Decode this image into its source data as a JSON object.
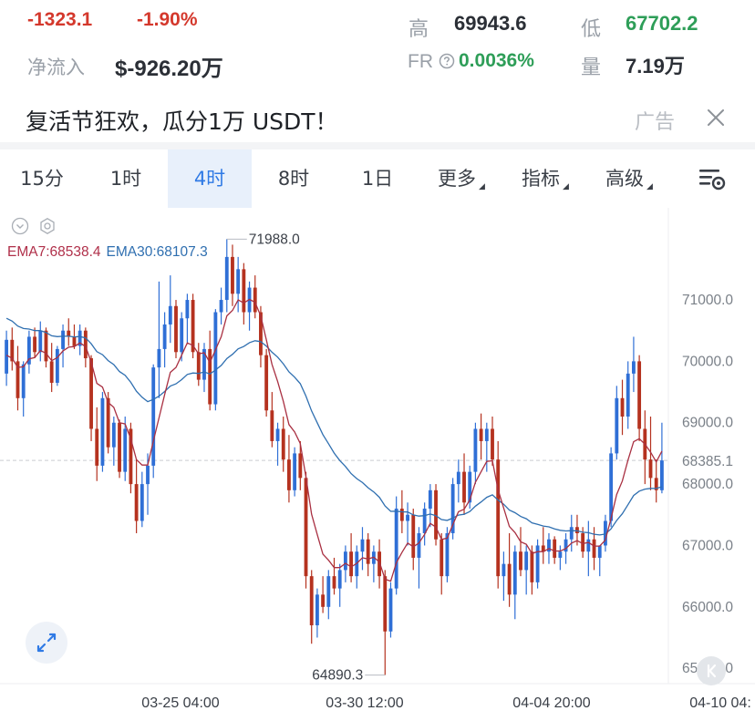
{
  "ticker": {
    "change": "-1323.1",
    "change_pct": "-1.90%",
    "netflow_label": "净流入",
    "netflow_value": "$-926.20万",
    "high_label": "高",
    "high_value": "69943.6",
    "low_label": "低",
    "low_value": "67702.2",
    "fr_label": "FR",
    "fr_value": "0.0036%",
    "vol_label": "量",
    "vol_value": "7.19万"
  },
  "ad": {
    "title": "复活节狂欢，瓜分1万 USDT！",
    "tag": "广告"
  },
  "tabs": {
    "t15m": "15分",
    "t1h": "1时",
    "t4h": "4时",
    "t8h": "8时",
    "t1d": "1日",
    "more": "更多",
    "indicators": "指标",
    "advanced": "高级"
  },
  "colors": {
    "up": "#2f6fd6",
    "down": "#b5321f",
    "ema7": "#a93042",
    "ema30": "#2f6fb0",
    "active_tab_bg": "#e8f0fb",
    "active_tab_text": "#2f7ae5"
  },
  "icons": {
    "close": "close-icon",
    "settings": "chart-settings-icon",
    "collapse": "chevron-down-icon",
    "gear": "gear-icon",
    "expand": "expand-icon",
    "back": "back-to-latest-icon"
  },
  "chart_data": {
    "type": "candlestick",
    "interval": "4时",
    "ema7_label": "EMA7:68538.4",
    "ema30_label": "EMA30:68107.3",
    "last_price": "68385.1",
    "max_label": "71988.0",
    "min_label": "64890.3",
    "y_ticks": [
      "71000.0",
      "70000.0",
      "69000.0",
      "68000.0",
      "67000.0",
      "66000.0",
      "65000.0"
    ],
    "x_ticks": [
      "03-25 04:00",
      "03-30 12:00",
      "04-04 20:00",
      "04-10 04:"
    ],
    "ylim": [
      64750,
      72500
    ],
    "candles": [
      [
        69800,
        70500,
        69600,
        70350
      ],
      [
        70350,
        70550,
        69850,
        70000
      ],
      [
        70000,
        70250,
        69200,
        69400
      ],
      [
        69400,
        70000,
        69100,
        69950
      ],
      [
        69950,
        70500,
        69800,
        70400
      ],
      [
        70400,
        70550,
        70050,
        70150
      ],
      [
        70150,
        70650,
        70000,
        70500
      ],
      [
        70500,
        70550,
        69900,
        70000
      ],
      [
        70000,
        70300,
        69500,
        69650
      ],
      [
        69650,
        70250,
        69600,
        70200
      ],
      [
        70200,
        70600,
        69900,
        70500
      ],
      [
        70500,
        70700,
        70250,
        70400
      ],
      [
        70400,
        70600,
        70200,
        70250
      ],
      [
        70250,
        70600,
        70100,
        70500
      ],
      [
        70500,
        70550,
        69900,
        70050
      ],
      [
        70050,
        70100,
        68700,
        68900
      ],
      [
        68900,
        69250,
        68050,
        68300
      ],
      [
        68300,
        69500,
        68200,
        69400
      ],
      [
        69400,
        69500,
        68500,
        68600
      ],
      [
        68600,
        69100,
        68300,
        69000
      ],
      [
        69000,
        69050,
        68100,
        68200
      ],
      [
        68200,
        69100,
        68050,
        68900
      ],
      [
        68900,
        69000,
        67850,
        68000
      ],
      [
        68000,
        68400,
        67200,
        67400
      ],
      [
        67400,
        68200,
        67300,
        68000
      ],
      [
        68000,
        68500,
        67500,
        68300
      ],
      [
        68300,
        69950,
        68100,
        69900
      ],
      [
        69900,
        71300,
        69400,
        70200
      ],
      [
        70200,
        70800,
        69900,
        70600
      ],
      [
        70600,
        71400,
        70300,
        70900
      ],
      [
        70900,
        71000,
        70050,
        70150
      ],
      [
        70150,
        70800,
        70000,
        70700
      ],
      [
        70700,
        71100,
        70300,
        71000
      ],
      [
        71000,
        71100,
        70050,
        70150
      ],
      [
        70150,
        70300,
        69600,
        69700
      ],
      [
        69700,
        70300,
        69500,
        70200
      ],
      [
        70200,
        70500,
        69200,
        69300
      ],
      [
        69300,
        70850,
        69200,
        70800
      ],
      [
        70800,
        71200,
        70600,
        71000
      ],
      [
        71000,
        71990,
        70800,
        71700
      ],
      [
        71700,
        71900,
        70900,
        71100
      ],
      [
        71100,
        71700,
        70800,
        71500
      ],
      [
        71500,
        71600,
        70600,
        70800
      ],
      [
        70800,
        71300,
        70500,
        71200
      ],
      [
        71200,
        71400,
        70700,
        70800
      ],
      [
        70800,
        70900,
        69900,
        70100
      ],
      [
        70100,
        70200,
        69100,
        69200
      ],
      [
        69200,
        69500,
        68600,
        68700
      ],
      [
        68700,
        69000,
        68300,
        68900
      ],
      [
        68900,
        69100,
        68200,
        68400
      ],
      [
        68400,
        68800,
        67700,
        67900
      ],
      [
        67900,
        68600,
        67800,
        68500
      ],
      [
        68500,
        68700,
        67900,
        68100
      ],
      [
        68100,
        68200,
        66300,
        66500
      ],
      [
        66500,
        66600,
        65400,
        65700
      ],
      [
        65700,
        66300,
        65500,
        66200
      ],
      [
        66200,
        66500,
        65900,
        66000
      ],
      [
        66000,
        66600,
        65800,
        66500
      ],
      [
        66500,
        66800,
        66200,
        66300
      ],
      [
        66300,
        66700,
        66000,
        66600
      ],
      [
        66600,
        67000,
        66400,
        66900
      ],
      [
        66900,
        67200,
        66400,
        66500
      ],
      [
        66500,
        67000,
        66300,
        66900
      ],
      [
        66900,
        67300,
        66600,
        67100
      ],
      [
        67100,
        67200,
        66500,
        66700
      ],
      [
        66700,
        67000,
        66400,
        66900
      ],
      [
        66900,
        67100,
        66300,
        66500
      ],
      [
        66500,
        66600,
        64890,
        65600
      ],
      [
        65600,
        66400,
        65500,
        66300
      ],
      [
        66300,
        67800,
        66200,
        67600
      ],
      [
        67600,
        67900,
        67200,
        67400
      ],
      [
        67400,
        67700,
        67000,
        67500
      ],
      [
        67500,
        67600,
        66600,
        66800
      ],
      [
        66800,
        67300,
        66300,
        67200
      ],
      [
        67200,
        67700,
        67000,
        67600
      ],
      [
        67600,
        68000,
        67300,
        67900
      ],
      [
        67900,
        68000,
        67000,
        67100
      ],
      [
        67100,
        67200,
        66200,
        66500
      ],
      [
        66500,
        67300,
        66400,
        67200
      ],
      [
        67200,
        68100,
        67100,
        68000
      ],
      [
        68000,
        68400,
        67700,
        68200
      ],
      [
        68200,
        68500,
        67500,
        67700
      ],
      [
        67700,
        68300,
        67600,
        68200
      ],
      [
        68200,
        69000,
        68000,
        68900
      ],
      [
        68900,
        69150,
        68400,
        68700
      ],
      [
        68700,
        69000,
        68200,
        68900
      ],
      [
        68900,
        69100,
        68300,
        68400
      ],
      [
        68400,
        68700,
        66300,
        66500
      ],
      [
        66500,
        66900,
        66100,
        66700
      ],
      [
        66700,
        67200,
        66000,
        66200
      ],
      [
        66200,
        67000,
        65800,
        66900
      ],
      [
        66900,
        67300,
        66500,
        66600
      ],
      [
        66600,
        67000,
        66200,
        66900
      ],
      [
        66900,
        67000,
        66200,
        66400
      ],
      [
        66400,
        67100,
        66300,
        67000
      ],
      [
        67000,
        67300,
        66700,
        66900
      ],
      [
        66900,
        67200,
        66700,
        67100
      ],
      [
        67100,
        67150,
        66700,
        66800
      ],
      [
        66800,
        67000,
        66600,
        66900
      ],
      [
        66900,
        67200,
        66700,
        67100
      ],
      [
        67100,
        67500,
        66900,
        67300
      ],
      [
        67300,
        67500,
        67000,
        67200
      ],
      [
        67200,
        67300,
        66800,
        66900
      ],
      [
        66900,
        67400,
        66500,
        67100
      ],
      [
        67100,
        67300,
        66600,
        66800
      ],
      [
        66800,
        67000,
        66500,
        67000
      ],
      [
        67000,
        67500,
        66900,
        67400
      ],
      [
        67400,
        68600,
        67300,
        68500
      ],
      [
        68500,
        69600,
        68400,
        69400
      ],
      [
        69400,
        69700,
        68800,
        69100
      ],
      [
        69100,
        70000,
        68900,
        69800
      ],
      [
        69800,
        70400,
        69500,
        70000
      ],
      [
        70000,
        70100,
        68700,
        68900
      ],
      [
        68900,
        69200,
        68000,
        68400
      ],
      [
        68400,
        69100,
        67900,
        68100
      ],
      [
        68100,
        68400,
        67700,
        67900
      ],
      [
        67900,
        69000,
        67850,
        68385
      ]
    ],
    "ema7": [
      70100,
      70050,
      69900,
      69910,
      70040,
      70060,
      70175,
      70130,
      70010,
      70060,
      70170,
      70230,
      70240,
      70300,
      70240,
      69990,
      69640,
      69580,
      69330,
      69250,
      69000,
      68980,
      68740,
      68400,
      68310,
      68310,
      68700,
      69080,
      69460,
      69820,
      69900,
      70100,
      70300,
      70260,
      70120,
      70140,
      69980,
      70190,
      70400,
      70740,
      70830,
      71000,
      70950,
      71010,
      70960,
      70740,
      70350,
      69950,
      69670,
      69350,
      68970,
      68850,
      68660,
      68120,
      67510,
      67180,
      66860,
      66760,
      66640,
      66640,
      66710,
      66650,
      66710,
      66800,
      66780,
      66810,
      66730,
      66450,
      66420,
      66720,
      66890,
      67040,
      66980,
      67040,
      67180,
      67360,
      67300,
      67100,
      67120,
      67340,
      67550,
      67590,
      67740,
      68030,
      68200,
      68370,
      68380,
      67910,
      67610,
      67310,
      67210,
      67060,
      67020,
      66870,
      66900,
      66900,
      66950,
      66910,
      66910,
      66950,
      67040,
      67080,
      67030,
      67050,
      66990,
      66990,
      67090,
      67440,
      67830,
      68050,
      68390,
      68690,
      68740,
      68650,
      68520,
      68360,
      68538
    ]
  }
}
